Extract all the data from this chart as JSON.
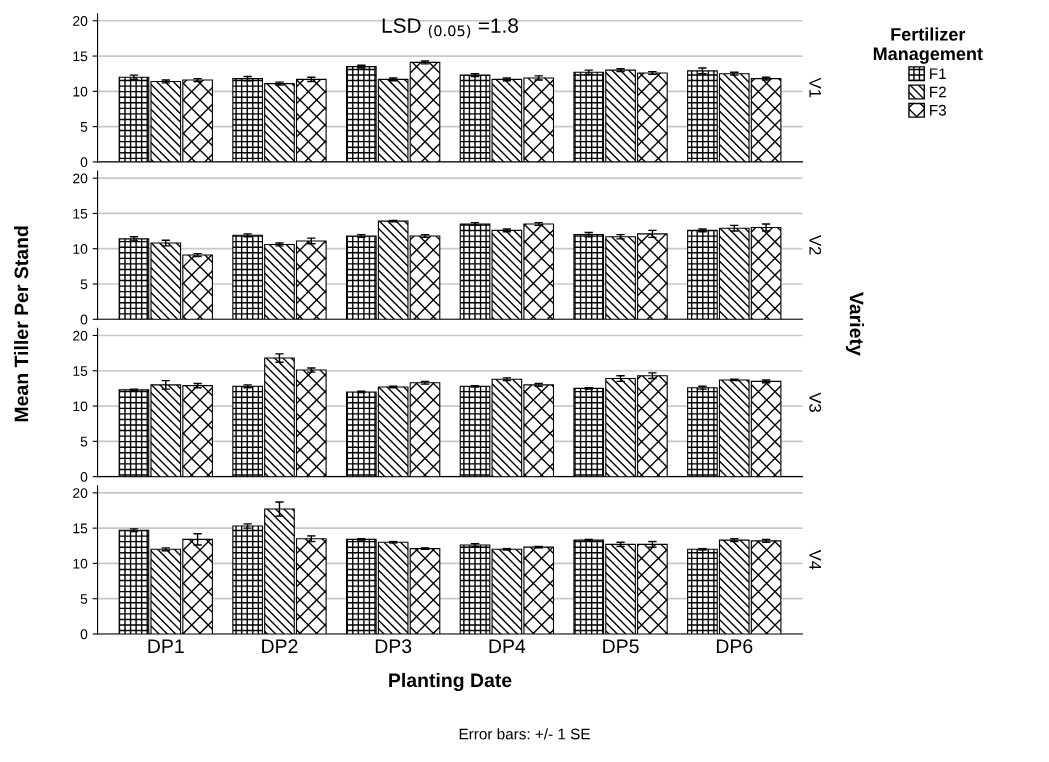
{
  "chart_data": [
    {
      "type": "bar",
      "categories": [
        null,
        null,
        null,
        null,
        null,
        null
      ],
      "ylabel": "Mean Tiller Per Stand",
      "y2label": "V1",
      "legend_title": "Fertilizer\nManagement",
      "legend": "right",
      "annotations": [
        "LSD $_{(0.05)}$ =1.8",
        "Variety"
      ],
      "ylim": [
        0,
        21
      ],
      "yticks": [
        0,
        5,
        10,
        15,
        20
      ],
      "grid": "y",
      "series": [
        {
          "name": "F1",
          "color": "#000000",
          "values": [
            12.0,
            11.8,
            13.5,
            12.3,
            12.7,
            12.9
          ],
          "errors": [
            0.3,
            0.3,
            0.2,
            0.2,
            0.3,
            0.4
          ]
        },
        {
          "name": "F2",
          "color": "#000000",
          "values": [
            11.4,
            11.1,
            11.7,
            11.7,
            13.0,
            12.5
          ],
          "errors": [
            0.2,
            0.2,
            0.2,
            0.2,
            0.2,
            0.2
          ]
        },
        {
          "name": "F3",
          "color": "#000000",
          "values": [
            11.6,
            11.7,
            14.1,
            11.9,
            12.6,
            11.8
          ],
          "errors": [
            0.2,
            0.3,
            0.2,
            0.3,
            0.2,
            0.2
          ]
        }
      ]
    },
    {
      "type": "bar",
      "categories": [
        null,
        null,
        null,
        null,
        null,
        null
      ],
      "y2label": "V2",
      "ylim": [
        0,
        21
      ],
      "yticks": [
        0,
        5,
        10,
        15,
        20
      ],
      "grid": "y",
      "series": [
        {
          "color": "#000000",
          "values": [
            11.4,
            11.9,
            11.8,
            13.5,
            12.0,
            12.6
          ],
          "errors": [
            0.3,
            0.2,
            0.2,
            0.2,
            0.3,
            0.2
          ]
        },
        {
          "color": "#000000",
          "values": [
            10.8,
            10.6,
            13.9,
            12.6,
            11.7,
            12.9
          ],
          "errors": [
            0.4,
            0.2,
            0.1,
            0.2,
            0.3,
            0.4
          ]
        },
        {
          "color": "#000000",
          "values": [
            9.1,
            11.1,
            11.8,
            13.5,
            12.1,
            13.0
          ],
          "errors": [
            0.2,
            0.4,
            0.2,
            0.2,
            0.5,
            0.5
          ]
        }
      ]
    },
    {
      "type": "bar",
      "categories": [
        null,
        null,
        null,
        null,
        null,
        null
      ],
      "y2label": "V3",
      "ylim": [
        0,
        21
      ],
      "yticks": [
        0,
        5,
        10,
        15,
        20
      ],
      "grid": "y",
      "series": [
        {
          "color": "#000000",
          "values": [
            12.3,
            12.8,
            12.0,
            12.8,
            12.5,
            12.6
          ],
          "errors": [
            0.1,
            0.2,
            0.1,
            0.1,
            0.1,
            0.2
          ]
        },
        {
          "color": "#000000",
          "values": [
            13.0,
            16.8,
            12.7,
            13.8,
            13.9,
            13.7
          ],
          "errors": [
            0.6,
            0.6,
            0.1,
            0.2,
            0.4,
            0.1
          ]
        },
        {
          "color": "#000000",
          "values": [
            12.9,
            15.1,
            13.3,
            13.0,
            14.3,
            13.5
          ],
          "errors": [
            0.3,
            0.3,
            0.2,
            0.2,
            0.4,
            0.2
          ]
        }
      ]
    },
    {
      "type": "bar",
      "categories": [
        "DP1",
        "DP2",
        "DP3",
        "DP4",
        "DP5",
        "DP6"
      ],
      "xlabel": "Planting Date",
      "y2label": "V4",
      "ylim": [
        0,
        21
      ],
      "yticks": [
        0,
        5,
        10,
        15,
        20
      ],
      "grid": "y",
      "annotations": [
        "Error bars: +/- 1 SE"
      ],
      "series": [
        {
          "color": "#000000",
          "values": [
            14.7,
            15.3,
            13.4,
            12.6,
            13.3,
            12.0
          ],
          "errors": [
            0.2,
            0.3,
            0.1,
            0.2,
            0.1,
            0.1
          ]
        },
        {
          "color": "#000000",
          "values": [
            12.0,
            17.7,
            13.0,
            12.0,
            12.7,
            13.3
          ],
          "errors": [
            0.2,
            1.0,
            0.1,
            0.1,
            0.3,
            0.2
          ]
        },
        {
          "color": "#000000",
          "values": [
            13.4,
            13.5,
            12.1,
            12.3,
            12.7,
            13.2
          ],
          "errors": [
            0.8,
            0.4,
            0.1,
            0.1,
            0.4,
            0.2
          ]
        }
      ]
    }
  ]
}
